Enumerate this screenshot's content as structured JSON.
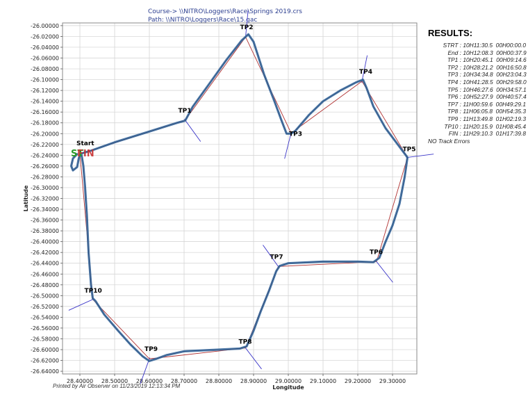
{
  "header": {
    "course_line": "Course-> \\\\NITRO\\Loggers\\Race\\Springs 2019.crs",
    "path_line": "Path: \\\\NITRO\\Loggers\\Race\\15.gac"
  },
  "footer": {
    "printed": "Printed by Air Observer on 11/23/2019 12:13:34 PM"
  },
  "results": {
    "title": "RESULTS:",
    "rows": [
      {
        "label": "STRT :",
        "time": "10H11:30.5",
        "elapsed": "00H00:00.0"
      },
      {
        "label": "End :",
        "time": "10H12:08.3",
        "elapsed": "00H00:37.9"
      },
      {
        "label": "TP1 :",
        "time": "10H20:45.1",
        "elapsed": "00H09:14.6"
      },
      {
        "label": "TP2 :",
        "time": "10H28:21.2",
        "elapsed": "00H16:50.8"
      },
      {
        "label": "TP3 :",
        "time": "10H34:34.8",
        "elapsed": "00H23:04.3"
      },
      {
        "label": "TP4 :",
        "time": "10H41:28.5",
        "elapsed": "00H29:58.0"
      },
      {
        "label": "TP5 :",
        "time": "10H46:27.6",
        "elapsed": "00H34:57.1"
      },
      {
        "label": "TP6 :",
        "time": "10H52:27.9",
        "elapsed": "00H40:57.4"
      },
      {
        "label": "TP7 :",
        "time": "11H00:59.6",
        "elapsed": "00H49:29.1"
      },
      {
        "label": "TP8 :",
        "time": "11H06:05.8",
        "elapsed": "00H54:35.3"
      },
      {
        "label": "TP9 :",
        "time": "11H13:49.8",
        "elapsed": "01H02:19.3"
      },
      {
        "label": "TP10 :",
        "time": "11H20:15.9",
        "elapsed": "01H08:45.4"
      },
      {
        "label": "FIN :",
        "time": "11H29:10.3",
        "elapsed": "01H17:39.8"
      }
    ],
    "errors": "NO Track Errors"
  },
  "chart_data": {
    "type": "line",
    "xlabel": "Longitude",
    "ylabel": "Latitude",
    "xlim": [
      28.35,
      29.37
    ],
    "ylim": [
      -26.645,
      -25.995
    ],
    "x_ticks": [
      28.4,
      28.5,
      28.6,
      28.7,
      28.8,
      28.9,
      29.0,
      29.1,
      29.2,
      29.3
    ],
    "x_tick_labels": [
      "28.40000",
      "28.50000",
      "28.60000",
      "28.70000",
      "28.80000",
      "28.90000",
      "29.00000",
      "29.10000",
      "29.20000",
      "29.30000"
    ],
    "y_ticks": [
      -26.0,
      -26.02,
      -26.04,
      -26.06,
      -26.08,
      -26.1,
      -26.12,
      -26.14,
      -26.16,
      -26.18,
      -26.2,
      -26.22,
      -26.24,
      -26.26,
      -26.28,
      -26.3,
      -26.32,
      -26.34,
      -26.36,
      -26.38,
      -26.4,
      -26.42,
      -26.44,
      -26.46,
      -26.48,
      -26.5,
      -26.52,
      -26.54,
      -26.56,
      -26.58,
      -26.6,
      -26.62,
      -26.64
    ],
    "y_tick_labels": [
      "-26.00000",
      "-26.02000",
      "-26.04000",
      "-26.06000",
      "-26.08000",
      "-26.10000",
      "-26.12000",
      "-26.14000",
      "-26.16000",
      "-26.18000",
      "-26.20000",
      "-26.22000",
      "-26.24000",
      "-26.26000",
      "-26.28000",
      "-26.30000",
      "-26.32000",
      "-26.34000",
      "-26.36000",
      "-26.38000",
      "-26.40000",
      "-26.42000",
      "-26.44000",
      "-26.46000",
      "-26.48000",
      "-26.50000",
      "-26.52000",
      "-26.54000",
      "-26.56000",
      "-26.58000",
      "-26.60000",
      "-26.62000",
      "-26.64000"
    ],
    "grid": true,
    "colors": {
      "track": "#3f6fa3",
      "course": "#b03030",
      "sector": "#3a35c8",
      "start_text": "#2a9a2a",
      "finish_text": "#c83030",
      "grid": "#d0d0d0"
    },
    "start_label": "ST",
    "finish_label": "FIN",
    "turnpoints": [
      {
        "name": "Start",
        "lon": 28.402,
        "lat": -26.237
      },
      {
        "name": "TP1",
        "lon": 28.703,
        "lat": -26.175
      },
      {
        "name": "TP2",
        "lon": 28.877,
        "lat": -26.021
      },
      {
        "name": "TP3",
        "lon": 29.008,
        "lat": -26.199
      },
      {
        "name": "TP4",
        "lon": 29.212,
        "lat": -26.103
      },
      {
        "name": "TP5",
        "lon": 29.343,
        "lat": -26.244
      },
      {
        "name": "TP6",
        "lon": 29.254,
        "lat": -26.437
      },
      {
        "name": "TP7",
        "lon": 28.971,
        "lat": -26.446
      },
      {
        "name": "TP8",
        "lon": 28.877,
        "lat": -26.597
      },
      {
        "name": "TP9",
        "lon": 28.6,
        "lat": -26.617
      },
      {
        "name": "TP10",
        "lon": 28.437,
        "lat": -26.507
      },
      {
        "name": "FIN",
        "lon": 28.4,
        "lat": -26.236
      }
    ],
    "track": [
      [
        28.392,
        -26.238
      ],
      [
        28.38,
        -26.246
      ],
      [
        28.375,
        -26.26
      ],
      [
        28.38,
        -26.268
      ],
      [
        28.392,
        -26.262
      ],
      [
        28.397,
        -26.245
      ],
      [
        28.403,
        -26.237
      ],
      [
        28.43,
        -26.232
      ],
      [
        28.5,
        -26.216
      ],
      [
        28.6,
        -26.196
      ],
      [
        28.68,
        -26.18
      ],
      [
        28.703,
        -26.176
      ],
      [
        28.725,
        -26.15
      ],
      [
        28.77,
        -26.11
      ],
      [
        28.82,
        -26.065
      ],
      [
        28.865,
        -26.028
      ],
      [
        28.885,
        -26.016
      ],
      [
        28.9,
        -26.03
      ],
      [
        28.93,
        -26.09
      ],
      [
        28.96,
        -26.14
      ],
      [
        28.98,
        -26.175
      ],
      [
        28.995,
        -26.2
      ],
      [
        29.008,
        -26.2
      ],
      [
        29.02,
        -26.195
      ],
      [
        29.06,
        -26.165
      ],
      [
        29.1,
        -26.14
      ],
      [
        29.15,
        -26.12
      ],
      [
        29.195,
        -26.105
      ],
      [
        29.215,
        -26.1
      ],
      [
        29.225,
        -26.115
      ],
      [
        29.245,
        -26.15
      ],
      [
        29.28,
        -26.19
      ],
      [
        29.315,
        -26.22
      ],
      [
        29.343,
        -26.244
      ],
      [
        29.335,
        -26.28
      ],
      [
        29.32,
        -26.33
      ],
      [
        29.3,
        -26.37
      ],
      [
        29.28,
        -26.4
      ],
      [
        29.262,
        -26.43
      ],
      [
        29.245,
        -26.438
      ],
      [
        29.2,
        -26.437
      ],
      [
        29.1,
        -26.437
      ],
      [
        29.0,
        -26.44
      ],
      [
        28.975,
        -26.445
      ],
      [
        28.965,
        -26.455
      ],
      [
        28.945,
        -26.49
      ],
      [
        28.92,
        -26.53
      ],
      [
        28.9,
        -26.565
      ],
      [
        28.88,
        -26.594
      ],
      [
        28.86,
        -26.598
      ],
      [
        28.8,
        -26.6
      ],
      [
        28.7,
        -26.603
      ],
      [
        28.65,
        -26.61
      ],
      [
        28.62,
        -26.617
      ],
      [
        28.6,
        -26.621
      ],
      [
        28.58,
        -26.612
      ],
      [
        28.545,
        -26.59
      ],
      [
        28.51,
        -26.565
      ],
      [
        28.47,
        -26.535
      ],
      [
        28.445,
        -26.51
      ],
      [
        28.437,
        -26.505
      ],
      [
        28.432,
        -26.48
      ],
      [
        28.425,
        -26.42
      ],
      [
        28.42,
        -26.35
      ],
      [
        28.415,
        -26.3
      ],
      [
        28.41,
        -26.26
      ],
      [
        28.405,
        -26.24
      ]
    ]
  }
}
